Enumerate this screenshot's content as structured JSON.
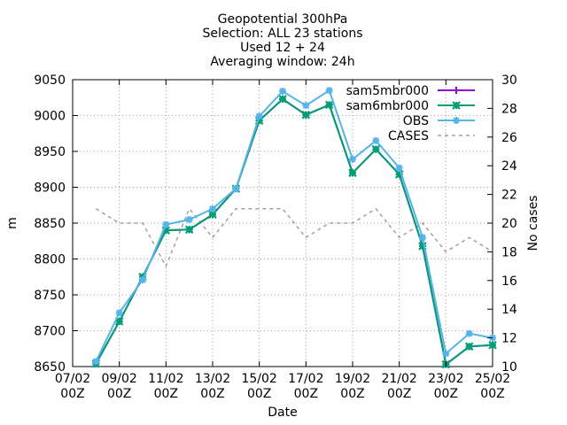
{
  "chart_data": {
    "type": "line",
    "title_lines": [
      "Geopotential 300hPa",
      "Selection: ALL      23 stations",
      "Used 12 + 24",
      "Averaging window: 24h"
    ],
    "xlabel": "Date",
    "ylabel": "m",
    "y2label": "No cases",
    "x_ticks": [
      {
        "top": "07/02",
        "bottom": "00Z",
        "day": 7
      },
      {
        "top": "09/02",
        "bottom": "00Z",
        "day": 9
      },
      {
        "top": "11/02",
        "bottom": "00Z",
        "day": 11
      },
      {
        "top": "13/02",
        "bottom": "00Z",
        "day": 13
      },
      {
        "top": "15/02",
        "bottom": "00Z",
        "day": 15
      },
      {
        "top": "17/02",
        "bottom": "00Z",
        "day": 17
      },
      {
        "top": "19/02",
        "bottom": "00Z",
        "day": 19
      },
      {
        "top": "21/02",
        "bottom": "00Z",
        "day": 21
      },
      {
        "top": "23/02",
        "bottom": "00Z",
        "day": 23
      },
      {
        "top": "25/02",
        "bottom": "00Z",
        "day": 25
      }
    ],
    "xlim": [
      7,
      25
    ],
    "ylim": [
      8650,
      9050
    ],
    "y_ticks": [
      "8650",
      "8700",
      "8750",
      "8800",
      "8850",
      "8900",
      "8950",
      "9000",
      "9050"
    ],
    "y2lim": [
      10,
      30
    ],
    "y2_ticks": [
      "10",
      "12",
      "14",
      "16",
      "18",
      "20",
      "22",
      "24",
      "26",
      "28",
      "30"
    ],
    "grid": true,
    "legend_position": "top-right",
    "x": [
      8,
      9,
      10,
      11,
      12,
      13,
      14,
      15,
      16,
      17,
      18,
      19,
      20,
      21,
      22,
      23,
      24,
      25
    ],
    "series": [
      {
        "name": "sam5mbr000",
        "axis": "y",
        "color": "#9400d3",
        "marker": "plus",
        "values": [
          8654,
          8713,
          8775,
          8840,
          8841,
          8862,
          8898,
          8993,
          9023,
          9001,
          9015,
          8920,
          8953,
          8918,
          8818,
          8653,
          8678,
          8680
        ]
      },
      {
        "name": "sam6mbr000",
        "axis": "y",
        "color": "#009e73",
        "marker": "cross",
        "values": [
          8654,
          8713,
          8775,
          8840,
          8841,
          8862,
          8898,
          8993,
          9023,
          9001,
          9015,
          8920,
          8953,
          8918,
          8818,
          8653,
          8678,
          8680
        ]
      },
      {
        "name": "OBS",
        "axis": "y",
        "color": "#56b4e9",
        "marker": "star",
        "values": [
          8657,
          8725,
          8771,
          8848,
          8855,
          8870,
          8898,
          8999,
          9034,
          9014,
          9035,
          8939,
          8965,
          8927,
          8830,
          8668,
          8696,
          8690
        ]
      },
      {
        "name": "CASES",
        "axis": "y2",
        "color": "#a0a0a0",
        "dashed": true,
        "x": [
          8,
          9,
          10,
          11,
          12,
          13,
          14,
          15,
          16,
          17,
          18,
          19,
          20,
          21,
          22,
          23,
          24,
          25
        ],
        "values": [
          21,
          20,
          20,
          17,
          21,
          19,
          21,
          21,
          21,
          19,
          20,
          20,
          21,
          19,
          20,
          18,
          19,
          18
        ]
      }
    ]
  }
}
